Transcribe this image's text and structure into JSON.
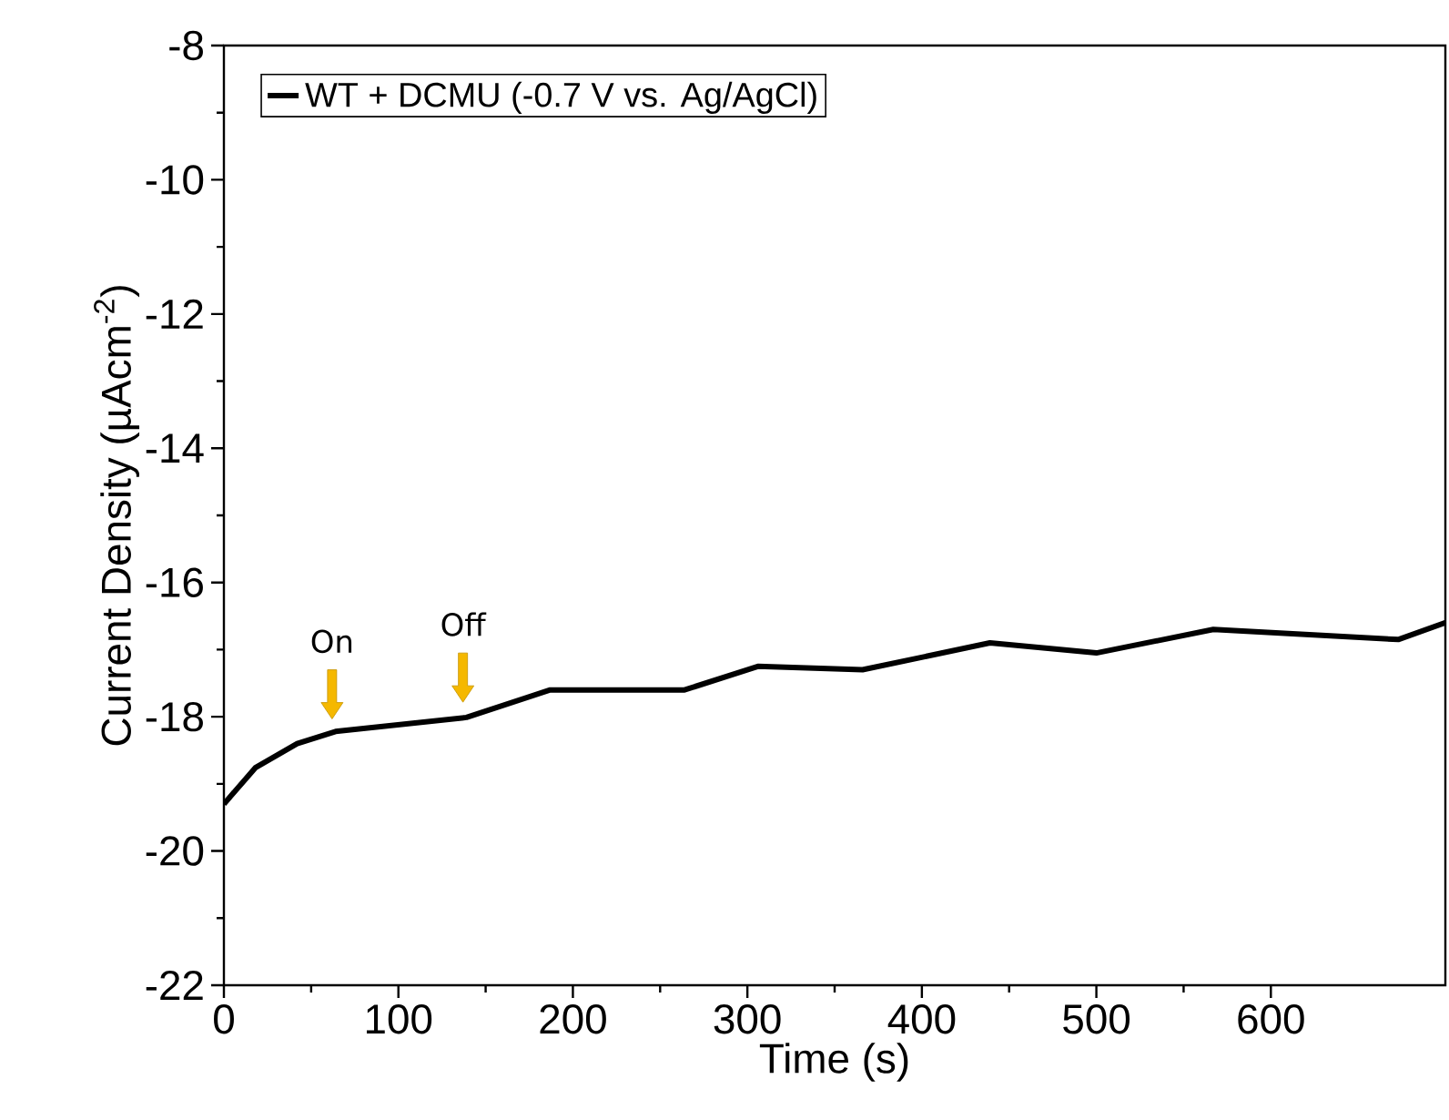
{
  "chart_data": {
    "type": "line",
    "xlabel": "Time (s)",
    "ylabel": "Current Density (µAcm$^{-2}$)",
    "xlim": [
      0,
      700
    ],
    "ylim": [
      -22,
      -8
    ],
    "xticks": [
      0,
      100,
      200,
      300,
      400,
      500,
      600
    ],
    "yticks": [
      -22,
      -20,
      -18,
      -16,
      -14,
      -12,
      -10,
      -8
    ],
    "legend": "top left",
    "marker": "none",
    "line_style": "solid",
    "series": [
      {
        "name": "WT + DCMU (-0.7 V vs. Ag/AgCl)",
        "color": "#000000",
        "x": [
          0,
          18,
          42,
          64,
          139,
          187,
          264,
          306,
          366,
          439,
          500,
          567,
          673,
          700
        ],
        "values": [
          -19.3,
          -18.76,
          -18.4,
          -18.22,
          -18.01,
          -17.6,
          -17.6,
          -17.25,
          -17.3,
          -16.9,
          -17.05,
          -16.7,
          -16.85,
          -16.6
        ]
      }
    ],
    "annotations": [
      {
        "text": "On",
        "x": 62,
        "y": -18.25
      },
      {
        "text": "Off",
        "x": 137,
        "y": -18.0
      }
    ]
  }
}
